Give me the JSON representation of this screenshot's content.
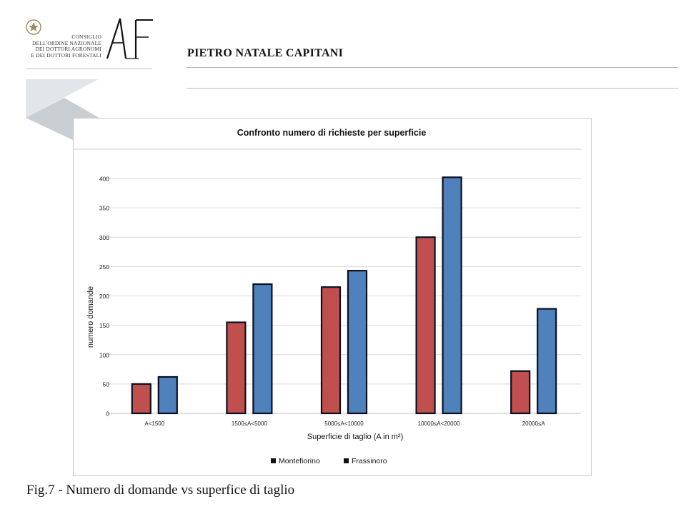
{
  "header": {
    "council_lines": [
      "CONSIGLIO",
      "DELL'ORDINE NAZIONALE",
      "DEI DOTTORI AGRONOMI",
      "E DEI DOTTORI FORESTALI"
    ],
    "logo_text": "AF",
    "author": "PIETRO NATALE CAPITANI"
  },
  "caption": "Fig.7 - Numero di domande vs superfice di taglio",
  "colors": {
    "montefiorino": "#c0504d",
    "frassinoro": "#4f81bd",
    "bar_edge": "#0b1020",
    "grid": "#d9d9d9",
    "deco_light": "#e2e6ea",
    "deco_dark": "#c9ced3"
  },
  "chart_data": {
    "type": "bar",
    "title": "Confronto numero di richieste per superficie",
    "xlabel": "Superficie di taglio (A in m²)",
    "ylabel": "numero domande",
    "categories": [
      "A<1500",
      "1500≤A<5000",
      "5000≤A<10000",
      "10000≤A<20000",
      "20000≤A"
    ],
    "series": [
      {
        "name": "Montefiorino",
        "values": [
          50,
          155,
          215,
          300,
          72
        ]
      },
      {
        "name": "Frassinoro",
        "values": [
          62,
          220,
          243,
          402,
          178
        ]
      }
    ],
    "ylim": [
      0,
      400
    ],
    "yticks": [
      0,
      50,
      100,
      150,
      200,
      250,
      300,
      350,
      400
    ],
    "grid": true,
    "legend": "bottom"
  }
}
